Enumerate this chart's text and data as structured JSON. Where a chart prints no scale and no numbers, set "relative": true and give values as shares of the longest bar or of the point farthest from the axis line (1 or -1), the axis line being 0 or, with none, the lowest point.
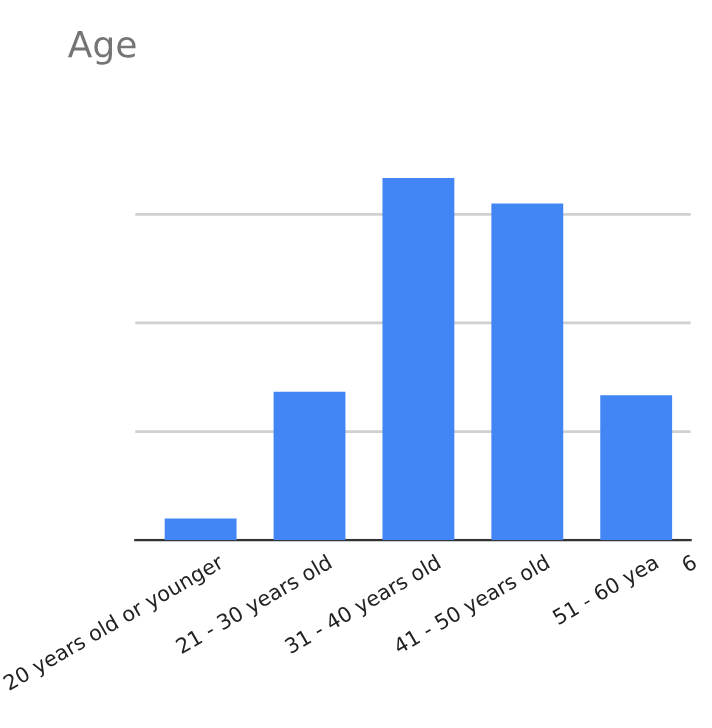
{
  "chart_data": {
    "type": "bar",
    "title": "Age",
    "categories": [
      "20 years old or younger",
      "21 - 30 years old",
      "31 - 40 years old",
      "41 - 50 years old",
      "51 - 60 yea",
      "6"
    ],
    "values": [
      0.06,
      0.41,
      1,
      0.93,
      0.4,
      null
    ],
    "color": "#4285f4",
    "relative": true,
    "grid": "y",
    "legend": false
  }
}
